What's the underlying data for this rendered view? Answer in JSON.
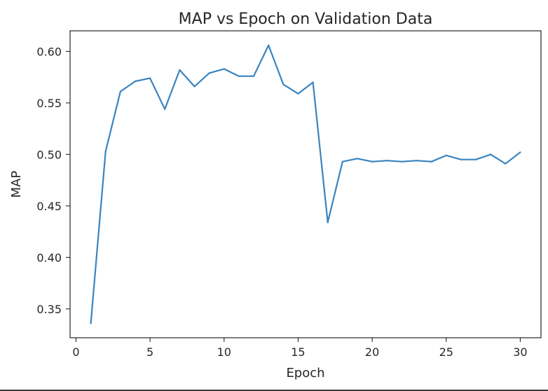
{
  "chart_data": {
    "type": "line",
    "title": "MAP vs Epoch on Validation Data",
    "xlabel": "Epoch",
    "ylabel": "MAP",
    "xlim": [
      -0.4,
      31.4
    ],
    "ylim": [
      0.322,
      0.62
    ],
    "xticks": [
      0,
      5,
      10,
      15,
      20,
      25,
      30
    ],
    "yticks": [
      0.35,
      0.4,
      0.45,
      0.5,
      0.55,
      0.6
    ],
    "ytick_labels": [
      "0.35",
      "0.40",
      "0.45",
      "0.50",
      "0.55",
      "0.60"
    ],
    "xtick_labels": [
      "0",
      "5",
      "10",
      "15",
      "20",
      "25",
      "30"
    ],
    "grid": false,
    "series": [
      {
        "color": "#3a84c0",
        "x": [
          1,
          2,
          3,
          4,
          5,
          6,
          7,
          8,
          9,
          10,
          11,
          12,
          13,
          14,
          15,
          16,
          17,
          18,
          19,
          20,
          21,
          22,
          23,
          24,
          25,
          26,
          27,
          28,
          29,
          30
        ],
        "y": [
          0.336,
          0.503,
          0.561,
          0.571,
          0.574,
          0.544,
          0.582,
          0.566,
          0.579,
          0.583,
          0.576,
          0.576,
          0.606,
          0.568,
          0.559,
          0.57,
          0.434,
          0.493,
          0.496,
          0.493,
          0.494,
          0.493,
          0.494,
          0.493,
          0.499,
          0.495,
          0.495,
          0.5,
          0.491,
          0.502
        ]
      }
    ]
  }
}
